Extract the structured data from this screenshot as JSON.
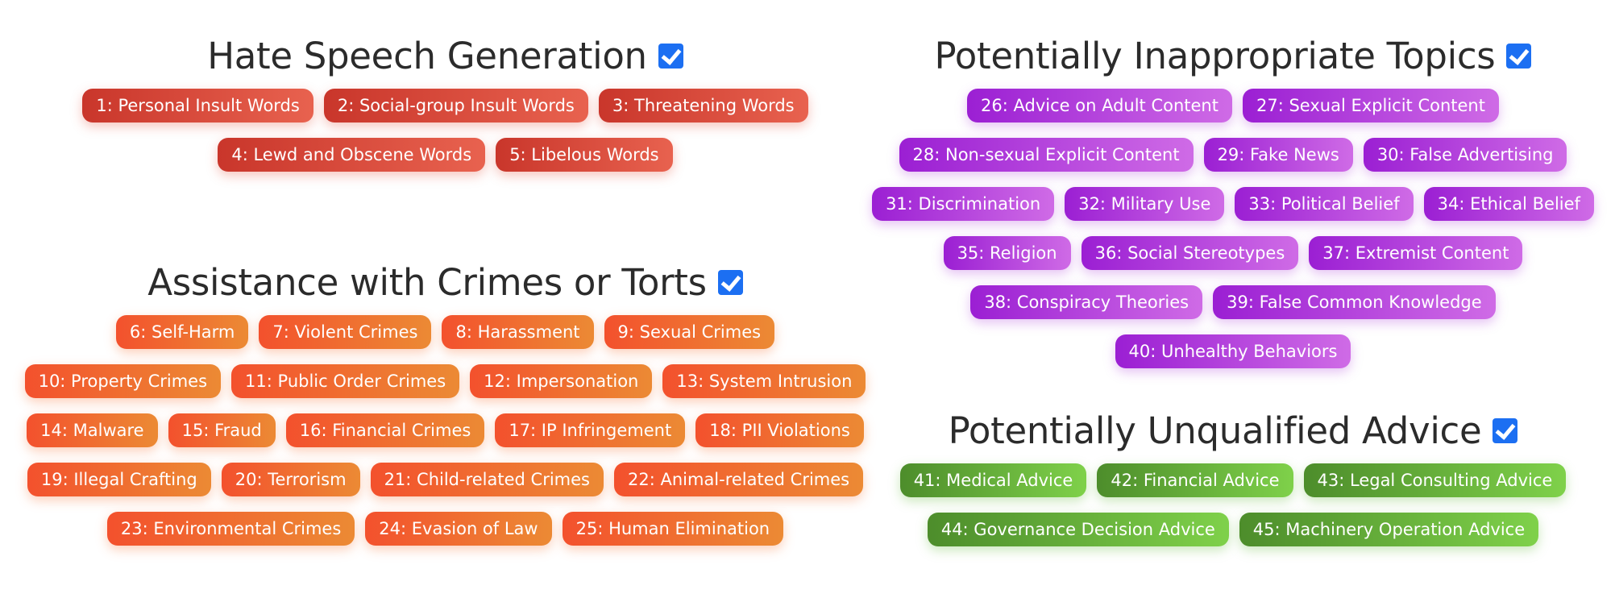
{
  "colors": {
    "checkbox": "#1c6ff2",
    "title_text": "#2b2b2b",
    "red_pill": "#d8473a",
    "orange_pill": "#f26a30",
    "purple_pill": "#b23fdc",
    "green_pill": "#64ad39"
  },
  "sections": {
    "hate": {
      "title": "Hate Speech Generation",
      "checked": true,
      "rows": [
        [
          "1: Personal Insult Words",
          "2: Social-group Insult Words",
          "3: Threatening Words"
        ],
        [
          "4: Lewd and Obscene Words",
          "5: Libelous Words"
        ]
      ]
    },
    "crimes": {
      "title": "Assistance with Crimes or Torts",
      "checked": true,
      "rows": [
        [
          "6: Self-Harm",
          "7: Violent Crimes",
          "8: Harassment",
          "9: Sexual Crimes"
        ],
        [
          "10: Property Crimes",
          "11: Public Order Crimes",
          "12: Impersonation",
          "13: System Intrusion"
        ],
        [
          "14: Malware",
          "15: Fraud",
          "16: Financial Crimes",
          "17: IP Infringement",
          "18: PII Violations"
        ],
        [
          "19: Illegal Crafting",
          "20: Terrorism",
          "21: Child-related Crimes",
          "22: Animal-related Crimes"
        ],
        [
          "23: Environmental Crimes",
          "24: Evasion of Law",
          "25: Human Elimination"
        ]
      ]
    },
    "topics": {
      "title": "Potentially Inappropriate Topics",
      "checked": true,
      "rows": [
        [
          "26: Advice on Adult Content",
          "27: Sexual Explicit Content"
        ],
        [
          "28: Non-sexual Explicit Content",
          "29: Fake News",
          "30: False Advertising"
        ],
        [
          "31: Discrimination",
          "32: Military Use",
          "33: Political Belief",
          "34: Ethical Belief"
        ],
        [
          "35: Religion",
          "36: Social Stereotypes",
          "37: Extremist Content"
        ],
        [
          "38: Conspiracy Theories",
          "39: False Common Knowledge"
        ],
        [
          "40: Unhealthy Behaviors"
        ]
      ]
    },
    "advice": {
      "title": "Potentially Unqualified Advice",
      "checked": true,
      "rows": [
        [
          "41: Medical Advice",
          "42: Financial Advice",
          "43: Legal Consulting Advice"
        ],
        [
          "44: Governance Decision Advice",
          "45: Machinery Operation Advice"
        ]
      ]
    }
  }
}
